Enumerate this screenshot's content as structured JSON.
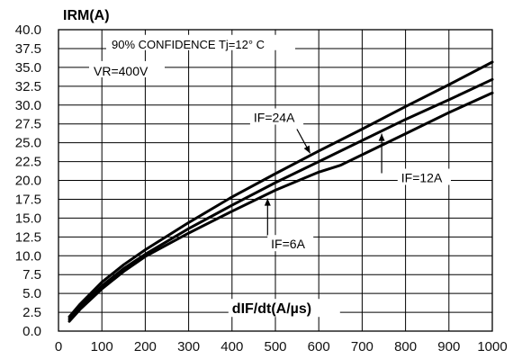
{
  "chart_data": {
    "type": "line",
    "title": "",
    "xlabel": "dIF/dt(A/µs)",
    "ylabel": "IRM(A)",
    "xlim": [
      0,
      1000
    ],
    "ylim": [
      0,
      40
    ],
    "grid": true,
    "x_ticks": [
      "0",
      "100",
      "200",
      "300",
      "400",
      "500",
      "600",
      "700",
      "800",
      "900",
      "1000"
    ],
    "y_ticks": [
      "0.0",
      "2.5",
      "5.0",
      "7.5",
      "10.0",
      "12.5",
      "15.0",
      "17.5",
      "20.0",
      "22.5",
      "25.0",
      "27.5",
      "30.0",
      "32.5",
      "35.0",
      "37.5",
      "40.0"
    ],
    "annotations": {
      "confidence": "90% CONFIDENCE Tj=12° C",
      "vr": "VR=400V"
    },
    "series": [
      {
        "name": "IF=24A",
        "x": [
          25,
          50,
          100,
          150,
          200,
          300,
          400,
          500,
          600,
          700,
          800,
          900,
          1000
        ],
        "y": [
          1.9,
          3.6,
          6.5,
          8.8,
          10.8,
          14.4,
          17.8,
          20.9,
          23.9,
          26.8,
          29.8,
          32.7,
          35.7
        ]
      },
      {
        "name": "IF=12A",
        "x": [
          25,
          50,
          100,
          150,
          200,
          300,
          400,
          500,
          600,
          700,
          800,
          900,
          1000
        ],
        "y": [
          1.6,
          3.2,
          6.0,
          8.3,
          10.2,
          13.6,
          16.7,
          19.7,
          22.5,
          25.3,
          28.1,
          30.7,
          33.4
        ]
      },
      {
        "name": "IF=6A",
        "x": [
          25,
          50,
          100,
          150,
          200,
          300,
          400,
          500,
          600,
          650,
          700,
          800,
          900,
          1000
        ],
        "y": [
          1.3,
          2.9,
          5.6,
          7.9,
          9.9,
          13.0,
          15.9,
          18.7,
          21.1,
          22.0,
          23.4,
          26.2,
          29.0,
          31.6
        ]
      }
    ],
    "series_labels": [
      {
        "text": "IF=24A",
        "at": [
          450,
          28.0
        ],
        "arrow_to": [
          580,
          23.6
        ]
      },
      {
        "text": "IF=12A",
        "at": [
          790,
          20.0
        ],
        "arrow_to": [
          745,
          26.2
        ]
      },
      {
        "text": "IF=6A",
        "at": [
          490,
          11.2
        ],
        "arrow_to": [
          482,
          17.6
        ]
      }
    ]
  }
}
